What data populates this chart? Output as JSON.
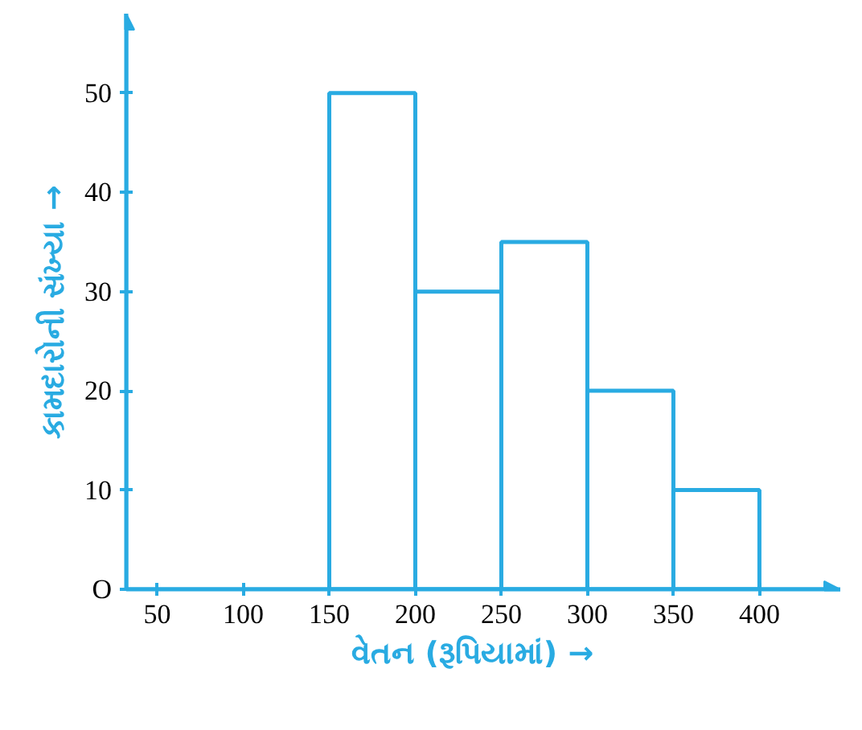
{
  "chart_data": {
    "type": "histogram",
    "xlabel": "વેતન (રૂપિયામાં)   →",
    "ylabel": "કામદારોની સંખ્યા   →",
    "bins": [
      150,
      200,
      250,
      300,
      350,
      400
    ],
    "values": [
      50,
      30,
      35,
      20,
      10
    ],
    "color": "#29abe2",
    "xlim": [
      32,
      447
    ],
    "ylim": [
      0,
      58
    ],
    "xticks": [
      50,
      100,
      150,
      200,
      250,
      300,
      350,
      400
    ],
    "yticks": [
      {
        "value": 0,
        "label": "O"
      },
      10,
      20,
      30,
      40,
      50
    ],
    "grid": false
  }
}
